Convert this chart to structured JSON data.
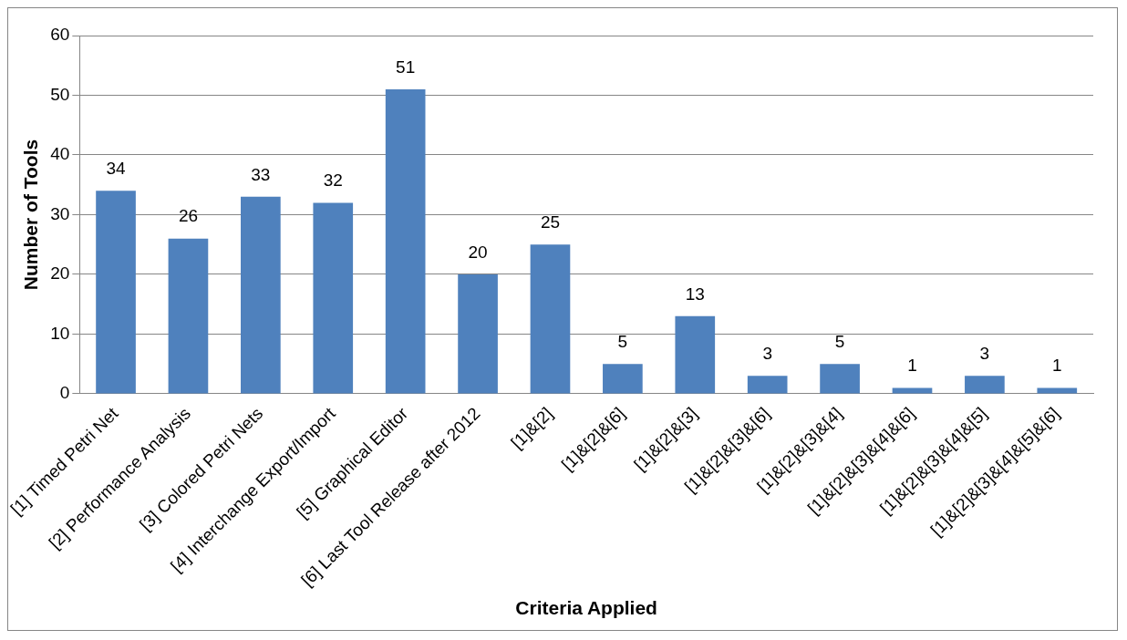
{
  "chart_data": {
    "type": "bar",
    "xlabel": "Criteria Applied",
    "ylabel": "Number of Tools",
    "categories": [
      "[1] Timed Petri Net",
      "[2] Performance Analysis",
      "[3] Colored Petri Nets",
      "[4] Interchange Export/Import",
      "[5] Graphical Editor",
      "[6] Last Tool Release after 2012",
      "[1]&[2]",
      "[1]&[2]&[6]",
      "[1]&[2]&[3]",
      "[1]&[2]&[3]&[6]",
      "[1]&[2]&[3]&[4]",
      "[1]&[2]&[3]&[4]&[6]",
      "[1]&[2]&[3]&[4]&[5]",
      "[1]&[2]&[3]&[4]&[5]&[6]"
    ],
    "values": [
      34,
      26,
      33,
      32,
      51,
      20,
      25,
      5,
      13,
      3,
      5,
      1,
      3,
      1
    ],
    "color": "#4f81bd",
    "ylim": [
      0,
      60
    ],
    "yticks": [
      0,
      10,
      20,
      30,
      40,
      50,
      60
    ],
    "grid": "y",
    "legend": false,
    "data_labels": true
  }
}
